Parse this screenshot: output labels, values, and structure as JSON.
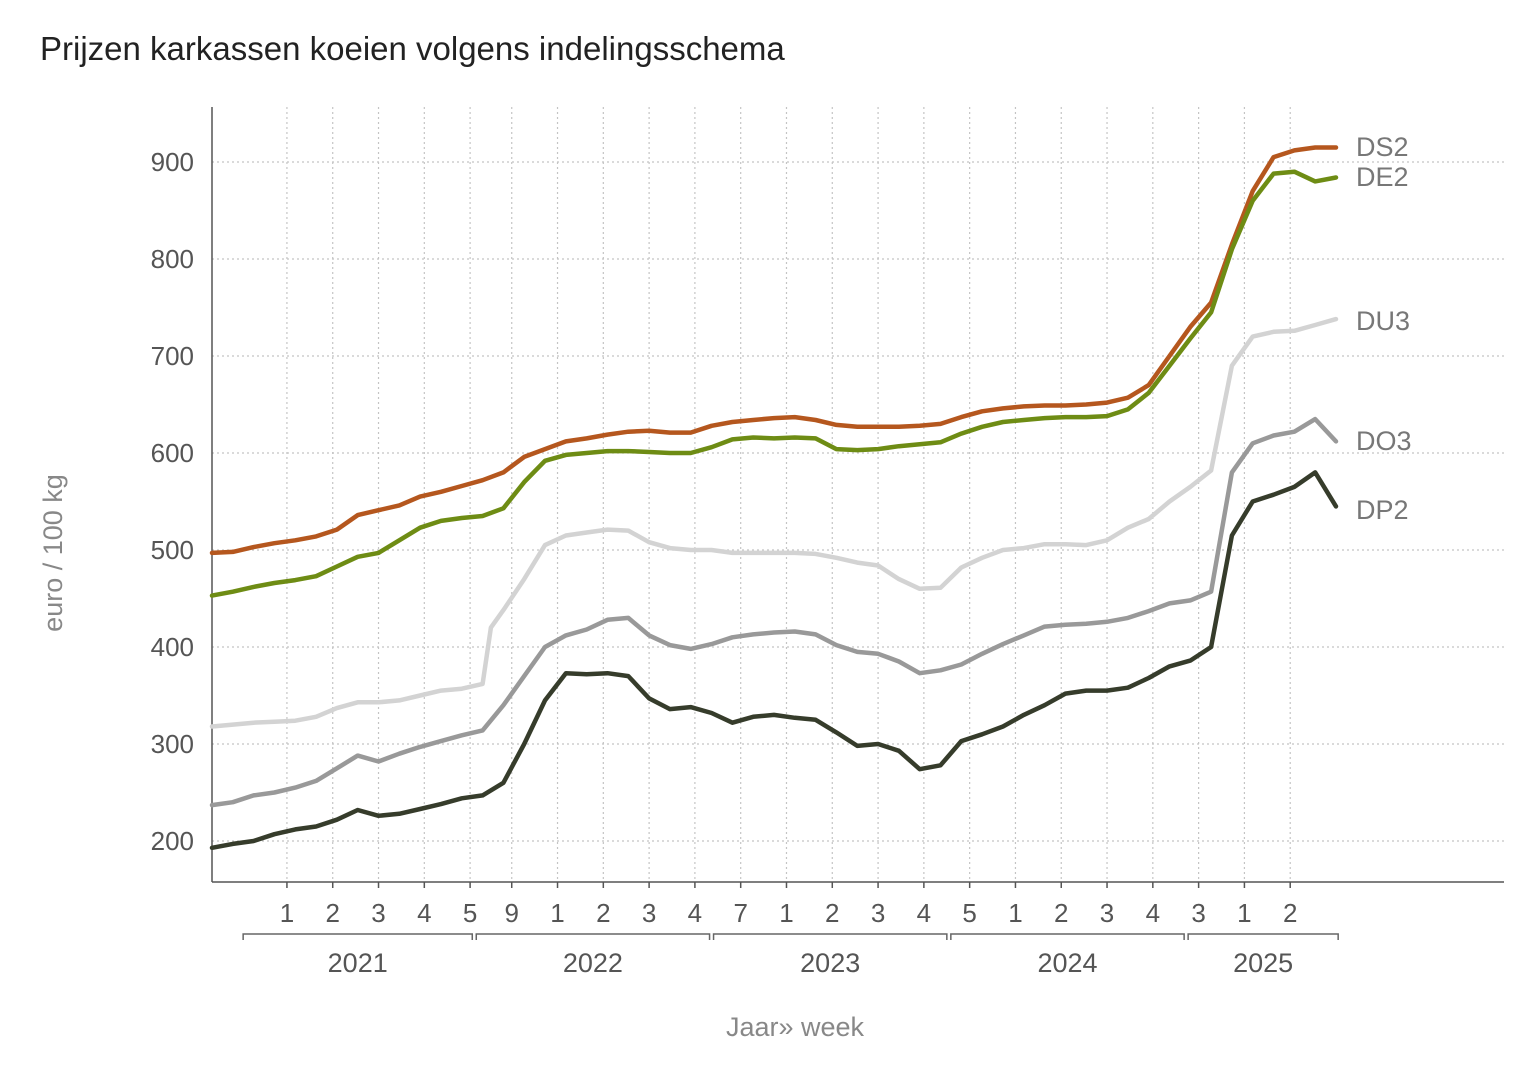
{
  "chart_data": {
    "type": "line",
    "title": "Prijzen karkassen koeien volgens indelingsschema",
    "ylabel": "euro / 100 kg",
    "xlabel": "Jaar» week",
    "ylim": [
      175,
      955
    ],
    "yticks": [
      200,
      300,
      400,
      500,
      600,
      700,
      800,
      900
    ],
    "grid": true,
    "x_unit": "weeks from start of 2021",
    "xlim": [
      0,
      270
    ],
    "years": [
      {
        "label": "2021",
        "start": 7,
        "end": 63
      },
      {
        "label": "2022",
        "start": 63,
        "end": 120
      },
      {
        "label": "2023",
        "start": 120,
        "end": 177
      },
      {
        "label": "2024",
        "start": 177,
        "end": 234
      },
      {
        "label": "2025",
        "start": 234,
        "end": 271
      }
    ],
    "x_ticks": [
      {
        "label": "1",
        "x": 18
      },
      {
        "label": "2",
        "x": 29
      },
      {
        "label": "3",
        "x": 40
      },
      {
        "label": "4",
        "x": 51
      },
      {
        "label": "5",
        "x": 62
      },
      {
        "label": "9",
        "x": 72
      },
      {
        "label": "1",
        "x": 83
      },
      {
        "label": "2",
        "x": 94
      },
      {
        "label": "3",
        "x": 105
      },
      {
        "label": "4",
        "x": 116
      },
      {
        "label": "7",
        "x": 127
      },
      {
        "label": "1",
        "x": 138
      },
      {
        "label": "2",
        "x": 149
      },
      {
        "label": "3",
        "x": 160
      },
      {
        "label": "4",
        "x": 171
      },
      {
        "label": "5",
        "x": 182
      },
      {
        "label": "1",
        "x": 193
      },
      {
        "label": "2",
        "x": 204
      },
      {
        "label": "3",
        "x": 215
      },
      {
        "label": "4",
        "x": 226
      },
      {
        "label": "3",
        "x": 237
      },
      {
        "label": "1",
        "x": 248
      },
      {
        "label": "2",
        "x": 259
      }
    ],
    "series": [
      {
        "name": "DS2",
        "color": "#b5571e",
        "points": [
          [
            0,
            497
          ],
          [
            5,
            498
          ],
          [
            10,
            503
          ],
          [
            15,
            507
          ],
          [
            20,
            510
          ],
          [
            25,
            514
          ],
          [
            30,
            521
          ],
          [
            35,
            536
          ],
          [
            40,
            541
          ],
          [
            45,
            546
          ],
          [
            50,
            555
          ],
          [
            55,
            560
          ],
          [
            60,
            566
          ],
          [
            65,
            572
          ],
          [
            70,
            580
          ],
          [
            75,
            596
          ],
          [
            80,
            604
          ],
          [
            85,
            612
          ],
          [
            90,
            615
          ],
          [
            95,
            619
          ],
          [
            100,
            622
          ],
          [
            105,
            623
          ],
          [
            110,
            621
          ],
          [
            115,
            621
          ],
          [
            120,
            628
          ],
          [
            125,
            632
          ],
          [
            130,
            634
          ],
          [
            135,
            636
          ],
          [
            140,
            637
          ],
          [
            145,
            634
          ],
          [
            150,
            629
          ],
          [
            155,
            627
          ],
          [
            160,
            627
          ],
          [
            165,
            627
          ],
          [
            170,
            628
          ],
          [
            175,
            630
          ],
          [
            180,
            637
          ],
          [
            185,
            643
          ],
          [
            190,
            646
          ],
          [
            195,
            648
          ],
          [
            200,
            649
          ],
          [
            205,
            649
          ],
          [
            210,
            650
          ],
          [
            215,
            652
          ],
          [
            220,
            657
          ],
          [
            225,
            670
          ],
          [
            230,
            700
          ],
          [
            235,
            730
          ],
          [
            240,
            755
          ],
          [
            245,
            815
          ],
          [
            250,
            870
          ],
          [
            255,
            905
          ],
          [
            260,
            912
          ],
          [
            265,
            915
          ],
          [
            270,
            915
          ]
        ]
      },
      {
        "name": "DE2",
        "color": "#6e8c14",
        "points": [
          [
            0,
            453
          ],
          [
            5,
            457
          ],
          [
            10,
            462
          ],
          [
            15,
            466
          ],
          [
            20,
            469
          ],
          [
            25,
            473
          ],
          [
            30,
            483
          ],
          [
            35,
            493
          ],
          [
            40,
            497
          ],
          [
            45,
            510
          ],
          [
            50,
            523
          ],
          [
            55,
            530
          ],
          [
            60,
            533
          ],
          [
            65,
            535
          ],
          [
            70,
            543
          ],
          [
            75,
            570
          ],
          [
            80,
            592
          ],
          [
            85,
            598
          ],
          [
            90,
            600
          ],
          [
            95,
            602
          ],
          [
            100,
            602
          ],
          [
            105,
            601
          ],
          [
            110,
            600
          ],
          [
            115,
            600
          ],
          [
            120,
            606
          ],
          [
            125,
            614
          ],
          [
            130,
            616
          ],
          [
            135,
            615
          ],
          [
            140,
            616
          ],
          [
            145,
            615
          ],
          [
            150,
            604
          ],
          [
            155,
            603
          ],
          [
            160,
            604
          ],
          [
            165,
            607
          ],
          [
            170,
            609
          ],
          [
            175,
            611
          ],
          [
            180,
            620
          ],
          [
            185,
            627
          ],
          [
            190,
            632
          ],
          [
            195,
            634
          ],
          [
            200,
            636
          ],
          [
            205,
            637
          ],
          [
            210,
            637
          ],
          [
            215,
            638
          ],
          [
            220,
            645
          ],
          [
            225,
            662
          ],
          [
            230,
            690
          ],
          [
            235,
            718
          ],
          [
            240,
            745
          ],
          [
            245,
            810
          ],
          [
            250,
            860
          ],
          [
            255,
            888
          ],
          [
            260,
            890
          ],
          [
            265,
            880
          ],
          [
            270,
            884
          ]
        ]
      },
      {
        "name": "DU3",
        "color": "#d3d3d3",
        "points": [
          [
            0,
            318
          ],
          [
            5,
            320
          ],
          [
            10,
            322
          ],
          [
            15,
            323
          ],
          [
            20,
            324
          ],
          [
            25,
            328
          ],
          [
            30,
            337
          ],
          [
            35,
            343
          ],
          [
            40,
            343
          ],
          [
            45,
            345
          ],
          [
            50,
            350
          ],
          [
            55,
            355
          ],
          [
            60,
            357
          ],
          [
            65,
            362
          ],
          [
            67,
            420
          ],
          [
            70,
            438
          ],
          [
            75,
            470
          ],
          [
            80,
            505
          ],
          [
            85,
            515
          ],
          [
            90,
            518
          ],
          [
            95,
            521
          ],
          [
            100,
            520
          ],
          [
            105,
            508
          ],
          [
            110,
            502
          ],
          [
            115,
            500
          ],
          [
            120,
            500
          ],
          [
            125,
            497
          ],
          [
            130,
            497
          ],
          [
            135,
            497
          ],
          [
            140,
            497
          ],
          [
            145,
            496
          ],
          [
            150,
            492
          ],
          [
            155,
            487
          ],
          [
            160,
            484
          ],
          [
            165,
            470
          ],
          [
            170,
            460
          ],
          [
            175,
            461
          ],
          [
            180,
            482
          ],
          [
            185,
            492
          ],
          [
            190,
            500
          ],
          [
            195,
            502
          ],
          [
            200,
            506
          ],
          [
            205,
            506
          ],
          [
            210,
            505
          ],
          [
            215,
            510
          ],
          [
            220,
            523
          ],
          [
            225,
            532
          ],
          [
            230,
            550
          ],
          [
            235,
            565
          ],
          [
            240,
            582
          ],
          [
            245,
            690
          ],
          [
            250,
            720
          ],
          [
            255,
            725
          ],
          [
            260,
            726
          ],
          [
            265,
            732
          ],
          [
            270,
            738
          ]
        ]
      },
      {
        "name": "DO3",
        "color": "#999999",
        "points": [
          [
            0,
            237
          ],
          [
            5,
            240
          ],
          [
            10,
            247
          ],
          [
            15,
            250
          ],
          [
            20,
            255
          ],
          [
            25,
            262
          ],
          [
            30,
            275
          ],
          [
            35,
            288
          ],
          [
            40,
            282
          ],
          [
            45,
            290
          ],
          [
            50,
            297
          ],
          [
            55,
            303
          ],
          [
            60,
            309
          ],
          [
            65,
            314
          ],
          [
            70,
            340
          ],
          [
            75,
            370
          ],
          [
            80,
            400
          ],
          [
            85,
            412
          ],
          [
            90,
            418
          ],
          [
            95,
            428
          ],
          [
            100,
            430
          ],
          [
            105,
            412
          ],
          [
            110,
            402
          ],
          [
            115,
            398
          ],
          [
            120,
            403
          ],
          [
            125,
            410
          ],
          [
            130,
            413
          ],
          [
            135,
            415
          ],
          [
            140,
            416
          ],
          [
            145,
            413
          ],
          [
            150,
            402
          ],
          [
            155,
            395
          ],
          [
            160,
            393
          ],
          [
            165,
            385
          ],
          [
            170,
            373
          ],
          [
            175,
            376
          ],
          [
            180,
            382
          ],
          [
            185,
            393
          ],
          [
            190,
            403
          ],
          [
            195,
            412
          ],
          [
            200,
            421
          ],
          [
            205,
            423
          ],
          [
            210,
            424
          ],
          [
            215,
            426
          ],
          [
            220,
            430
          ],
          [
            225,
            437
          ],
          [
            230,
            445
          ],
          [
            235,
            448
          ],
          [
            240,
            457
          ],
          [
            245,
            580
          ],
          [
            250,
            610
          ],
          [
            255,
            618
          ],
          [
            260,
            622
          ],
          [
            265,
            635
          ],
          [
            270,
            612
          ]
        ]
      },
      {
        "name": "DP2",
        "color": "#363c2b",
        "points": [
          [
            0,
            193
          ],
          [
            5,
            197
          ],
          [
            10,
            200
          ],
          [
            15,
            207
          ],
          [
            20,
            212
          ],
          [
            25,
            215
          ],
          [
            30,
            222
          ],
          [
            35,
            232
          ],
          [
            40,
            226
          ],
          [
            45,
            228
          ],
          [
            50,
            233
          ],
          [
            55,
            238
          ],
          [
            60,
            244
          ],
          [
            65,
            247
          ],
          [
            70,
            260
          ],
          [
            75,
            300
          ],
          [
            80,
            345
          ],
          [
            85,
            373
          ],
          [
            90,
            372
          ],
          [
            95,
            373
          ],
          [
            100,
            370
          ],
          [
            105,
            347
          ],
          [
            110,
            336
          ],
          [
            115,
            338
          ],
          [
            120,
            332
          ],
          [
            125,
            322
          ],
          [
            130,
            328
          ],
          [
            135,
            330
          ],
          [
            140,
            327
          ],
          [
            145,
            325
          ],
          [
            150,
            312
          ],
          [
            155,
            298
          ],
          [
            160,
            300
          ],
          [
            165,
            293
          ],
          [
            170,
            274
          ],
          [
            175,
            278
          ],
          [
            180,
            303
          ],
          [
            185,
            310
          ],
          [
            190,
            318
          ],
          [
            195,
            330
          ],
          [
            200,
            340
          ],
          [
            205,
            352
          ],
          [
            210,
            355
          ],
          [
            215,
            355
          ],
          [
            220,
            358
          ],
          [
            225,
            368
          ],
          [
            230,
            380
          ],
          [
            235,
            386
          ],
          [
            240,
            400
          ],
          [
            245,
            515
          ],
          [
            250,
            550
          ],
          [
            255,
            557
          ],
          [
            260,
            565
          ],
          [
            265,
            580
          ],
          [
            270,
            545
          ]
        ]
      }
    ],
    "labels": {
      "DS2": "DS2",
      "DE2": "DE2",
      "DU3": "DU3",
      "DO3": "DO3",
      "DP2": "DP2"
    }
  }
}
